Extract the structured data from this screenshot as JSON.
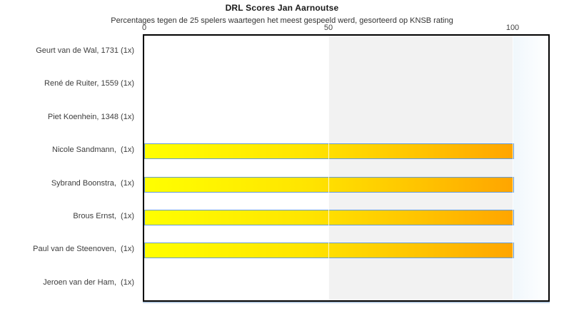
{
  "chart_data": {
    "type": "bar",
    "orientation": "horizontal",
    "title": "DRL Scores Jan Aarnoutse",
    "subtitle": "Percentages tegen de 25 spelers waartegen het meest gespeeld werd, gesorteerd op KNSB rating",
    "xlabel": "",
    "ylabel": "",
    "xlim": [
      0,
      110
    ],
    "x_ticks": [
      0,
      50,
      100
    ],
    "legend": "none",
    "grid": "white vertical gridlines at 50 and 100",
    "categories": [
      "Geurt van de Wal, 1731 (1x)",
      "René de Ruiter, 1559 (1x)",
      "Piet Koenhein, 1348 (1x)",
      "Nicole Sandmann,  (1x)",
      "Sybrand Boonstra,  (1x)",
      "Brous Ernst,  (1x)",
      "Paul van de Steenoven,  (1x)",
      "Jeroen van der Ham,  (1x)"
    ],
    "values": [
      0,
      0,
      0,
      100,
      100,
      100,
      100,
      0
    ],
    "highlight_band": {
      "from": 50,
      "to": 100,
      "color": "#f2f2f2"
    },
    "right_fade_band": {
      "from": 100,
      "to": 110,
      "color_start": "#f0f7fc",
      "color_end": "#ffffff"
    },
    "colors": {
      "bar_gradient_start": "#ffff00",
      "bar_gradient_end": "#ffa500",
      "bar_border": "#649bd6",
      "plot_border": "#000000",
      "plot_shadow": "#bccfe3",
      "text": "#3d3d3d",
      "title_text": "#1a1a1a"
    }
  }
}
